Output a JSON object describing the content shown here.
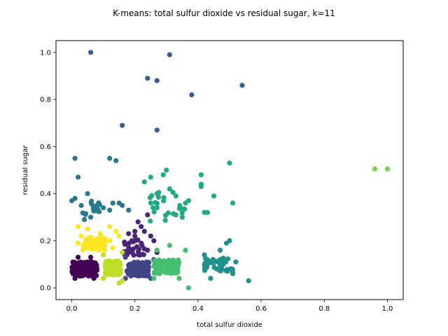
{
  "chart_data": {
    "type": "scatter",
    "title": "K-means: total sulfur dioxide vs residual sugar, k=11",
    "xlabel": "total sulfur dioxide",
    "ylabel": "residual sugar",
    "xlim": [
      -0.05,
      1.05
    ],
    "ylim": [
      -0.05,
      1.05
    ],
    "xticks": [
      0.0,
      0.2,
      0.4,
      0.6,
      0.8,
      1.0
    ],
    "yticks": [
      0.0,
      0.2,
      0.4,
      0.6,
      0.8,
      1.0
    ],
    "xtick_labels": [
      "0.0",
      "0.2",
      "0.4",
      "0.6",
      "0.8",
      "1.0"
    ],
    "ytick_labels": [
      "0.0",
      "0.2",
      "0.4",
      "0.6",
      "0.8",
      "1.0"
    ],
    "grid": false,
    "clusters": [
      {
        "color": "#440154",
        "center": [
          0.04,
          0.08
        ],
        "spread": [
          0.04,
          0.03
        ],
        "count": 170,
        "points": [
          [
            0.01,
            0.04
          ],
          [
            0.07,
            0.04
          ],
          [
            0.02,
            0.13
          ],
          [
            0.06,
            0.13
          ]
        ]
      },
      {
        "color": "#482576",
        "center": [
          0.2,
          0.17
        ],
        "spread": [
          0.035,
          0.035
        ],
        "count": 30,
        "points": [
          [
            0.21,
            0.28
          ],
          [
            0.22,
            0.26
          ],
          [
            0.2,
            0.24
          ],
          [
            0.25,
            0.22
          ],
          [
            0.19,
            0.2
          ],
          [
            0.24,
            0.16
          ],
          [
            0.27,
            0.15
          ],
          [
            0.18,
            0.23
          ],
          [
            0.23,
            0.24
          ],
          [
            0.2,
            0.22
          ],
          [
            0.24,
            0.31
          ],
          [
            0.26,
            0.2
          ]
        ]
      },
      {
        "color": "#414487",
        "center": [
          0.21,
          0.08
        ],
        "spread": [
          0.035,
          0.03
        ],
        "count": 130,
        "points": [
          [
            0.17,
            0.04
          ],
          [
            0.25,
            0.04
          ],
          [
            0.17,
            0.13
          ],
          [
            0.26,
            0.12
          ]
        ]
      },
      {
        "color": "#35608d",
        "center": [
          0.3,
          0.8
        ],
        "spread": [
          0.0,
          0.0
        ],
        "count": 0,
        "points": [
          [
            0.06,
            1.0
          ],
          [
            0.31,
            0.99
          ],
          [
            0.24,
            0.89
          ],
          [
            0.27,
            0.88
          ],
          [
            0.38,
            0.82
          ],
          [
            0.54,
            0.86
          ],
          [
            0.16,
            0.69
          ],
          [
            0.27,
            0.67
          ]
        ]
      },
      {
        "color": "#2a788e",
        "center": [
          0.06,
          0.34
        ],
        "spread": [
          0.03,
          0.03
        ],
        "count": 18,
        "points": [
          [
            0.01,
            0.55
          ],
          [
            0.02,
            0.47
          ],
          [
            0.12,
            0.55
          ],
          [
            0.14,
            0.54
          ],
          [
            0.01,
            0.38
          ],
          [
            0.05,
            0.4
          ],
          [
            0.04,
            0.29
          ],
          [
            0.06,
            0.3
          ],
          [
            0.1,
            0.34
          ],
          [
            0.13,
            0.36
          ],
          [
            0.15,
            0.36
          ],
          [
            0.16,
            0.35
          ],
          [
            0.18,
            0.33
          ],
          [
            0.03,
            0.35
          ],
          [
            0.0,
            0.37
          ],
          [
            0.12,
            0.33
          ]
        ]
      },
      {
        "color": "#21918c",
        "center": [
          0.47,
          0.1
        ],
        "spread": [
          0.05,
          0.03
        ],
        "count": 45,
        "points": [
          [
            0.56,
            0.03
          ],
          [
            0.52,
            0.11
          ],
          [
            0.5,
            0.2
          ],
          [
            0.49,
            0.19
          ],
          [
            0.42,
            0.14
          ],
          [
            0.47,
            0.16
          ],
          [
            0.44,
            0.04
          ],
          [
            0.51,
            0.06
          ]
        ]
      },
      {
        "color": "#22a884",
        "center": [
          0.3,
          0.35
        ],
        "spread": [
          0.06,
          0.07
        ],
        "count": 22,
        "points": [
          [
            0.3,
            0.5
          ],
          [
            0.29,
            0.48
          ],
          [
            0.25,
            0.47
          ],
          [
            0.23,
            0.45
          ],
          [
            0.41,
            0.48
          ],
          [
            0.5,
            0.53
          ],
          [
            0.31,
            0.42
          ],
          [
            0.27,
            0.4
          ],
          [
            0.33,
            0.39
          ],
          [
            0.37,
            0.37
          ],
          [
            0.41,
            0.43
          ],
          [
            0.41,
            0.44
          ],
          [
            0.45,
            0.39
          ],
          [
            0.43,
            0.32
          ],
          [
            0.42,
            0.32
          ],
          [
            0.51,
            0.36
          ],
          [
            0.33,
            0.31
          ],
          [
            0.36,
            0.36
          ],
          [
            0.27,
            0.34
          ],
          [
            0.35,
            0.3
          ]
        ]
      },
      {
        "color": "#44bf70",
        "center": [
          0.3,
          0.09
        ],
        "spread": [
          0.04,
          0.03
        ],
        "count": 140,
        "points": [
          [
            0.26,
            0.04
          ],
          [
            0.37,
            0.0
          ],
          [
            0.34,
            0.04
          ],
          [
            0.27,
            0.16
          ],
          [
            0.36,
            0.16
          ],
          [
            0.31,
            0.18
          ]
        ]
      },
      {
        "color": "#7ad151",
        "center": [
          0.98,
          0.505
        ],
        "spread": [
          0.0,
          0.0
        ],
        "count": 0,
        "points": [
          [
            0.96,
            0.505
          ],
          [
            1.0,
            0.505
          ]
        ]
      },
      {
        "color": "#bddf26",
        "center": [
          0.13,
          0.085
        ],
        "spread": [
          0.025,
          0.03
        ],
        "count": 130,
        "points": [
          [
            0.1,
            0.04
          ],
          [
            0.16,
            0.03
          ],
          [
            0.15,
            0.02
          ],
          [
            0.1,
            0.14
          ],
          [
            0.16,
            0.15
          ]
        ]
      },
      {
        "color": "#fde725",
        "center": [
          0.07,
          0.19
        ],
        "spread": [
          0.035,
          0.03
        ],
        "count": 75,
        "points": [
          [
            0.02,
            0.26
          ],
          [
            0.05,
            0.25
          ],
          [
            0.06,
            0.21
          ],
          [
            0.12,
            0.26
          ],
          [
            0.14,
            0.24
          ],
          [
            0.09,
            0.23
          ],
          [
            0.15,
            0.22
          ],
          [
            0.12,
            0.2
          ],
          [
            0.03,
            0.22
          ],
          [
            0.02,
            0.19
          ],
          [
            0.13,
            0.17
          ]
        ]
      }
    ]
  }
}
